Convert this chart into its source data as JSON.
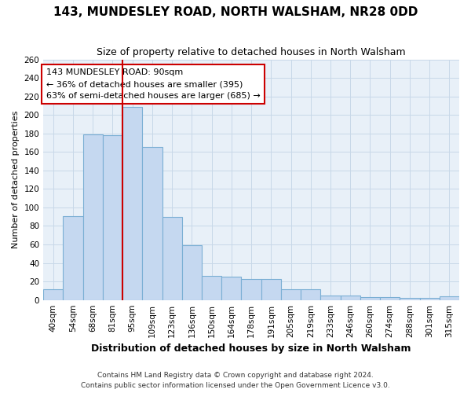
{
  "title": "143, MUNDESLEY ROAD, NORTH WALSHAM, NR28 0DD",
  "subtitle": "Size of property relative to detached houses in North Walsham",
  "xlabel": "Distribution of detached houses by size in North Walsham",
  "ylabel": "Number of detached properties",
  "categories": [
    "40sqm",
    "54sqm",
    "68sqm",
    "81sqm",
    "95sqm",
    "109sqm",
    "123sqm",
    "136sqm",
    "150sqm",
    "164sqm",
    "178sqm",
    "191sqm",
    "205sqm",
    "219sqm",
    "233sqm",
    "246sqm",
    "260sqm",
    "274sqm",
    "288sqm",
    "301sqm",
    "315sqm"
  ],
  "values": [
    12,
    91,
    179,
    178,
    209,
    165,
    90,
    59,
    26,
    25,
    23,
    23,
    12,
    12,
    5,
    5,
    3,
    3,
    2,
    2,
    4
  ],
  "bar_color": "#c5d8f0",
  "bar_edge_color": "#7bafd4",
  "annotation_text": "143 MUNDESLEY ROAD: 90sqm\n← 36% of detached houses are smaller (395)\n63% of semi-detached houses are larger (685) →",
  "annotation_box_color": "#ffffff",
  "annotation_box_edge_color": "#cc0000",
  "red_line_color": "#cc0000",
  "grid_color": "#c8d8e8",
  "background_color": "#e8f0f8",
  "ylim_max": 260,
  "ytick_step": 20,
  "footer_line1": "Contains HM Land Registry data © Crown copyright and database right 2024.",
  "footer_line2": "Contains public sector information licensed under the Open Government Licence v3.0.",
  "title_fontsize": 11,
  "subtitle_fontsize": 9,
  "xlabel_fontsize": 9,
  "ylabel_fontsize": 8,
  "tick_fontsize": 7.5,
  "footer_fontsize": 6.5
}
